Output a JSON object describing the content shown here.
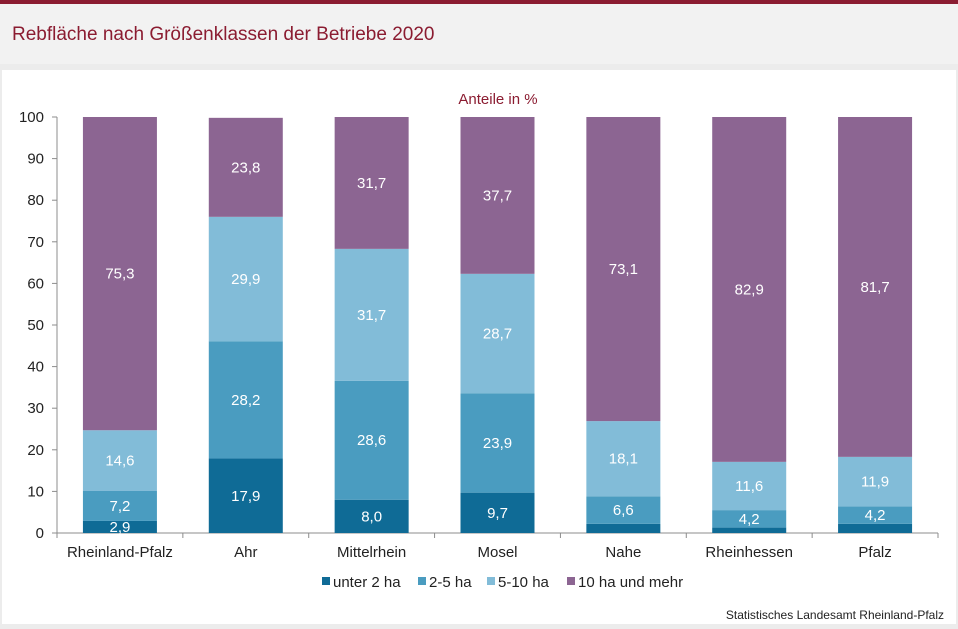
{
  "header": {
    "title": "Rebfläche nach Größenklassen der Betriebe 2020"
  },
  "source": "Statistisches Landesamt Rheinland-Pfalz",
  "chart_data": {
    "type": "bar",
    "stacked": true,
    "title": "Rebfläche nach Größenklassen der Betriebe 2020",
    "subtitle": "Anteile in %",
    "categories": [
      "Rheinland-Pfalz",
      "Ahr",
      "Mittelrhein",
      "Mosel",
      "Nahe",
      "Rheinhessen",
      "Pfalz"
    ],
    "series": [
      {
        "name": "unter 2 ha",
        "color": "#0f6b96",
        "values": [
          2.9,
          17.9,
          8.0,
          9.7,
          2.2,
          1.3,
          2.2
        ],
        "labels": [
          "2,9",
          "17,9",
          "8,0",
          "9,7",
          "",
          "",
          ""
        ]
      },
      {
        "name": "2-5 ha",
        "color": "#4a9cc0",
        "values": [
          7.2,
          28.2,
          28.6,
          23.9,
          6.6,
          4.2,
          4.2
        ],
        "labels": [
          "7,2",
          "28,2",
          "28,6",
          "23,9",
          "6,6",
          "4,2",
          "4,2"
        ]
      },
      {
        "name": "5-10 ha",
        "color": "#82bcd8",
        "values": [
          14.6,
          29.9,
          31.7,
          28.7,
          18.1,
          11.6,
          11.9
        ],
        "labels": [
          "14,6",
          "29,9",
          "31,7",
          "28,7",
          "18,1",
          "11,6",
          "11,9"
        ]
      },
      {
        "name": "10 ha und mehr",
        "color": "#8c6592",
        "values": [
          75.3,
          23.8,
          31.7,
          37.7,
          73.1,
          82.9,
          81.7
        ],
        "labels": [
          "75,3",
          "23,8",
          "31,7",
          "37,7",
          "73,1",
          "82,9",
          "81,7"
        ]
      }
    ],
    "ylim": [
      0,
      100
    ],
    "yticks": [
      0,
      10,
      20,
      30,
      40,
      50,
      60,
      70,
      80,
      90,
      100
    ],
    "grid": false,
    "legend": "bottom"
  }
}
